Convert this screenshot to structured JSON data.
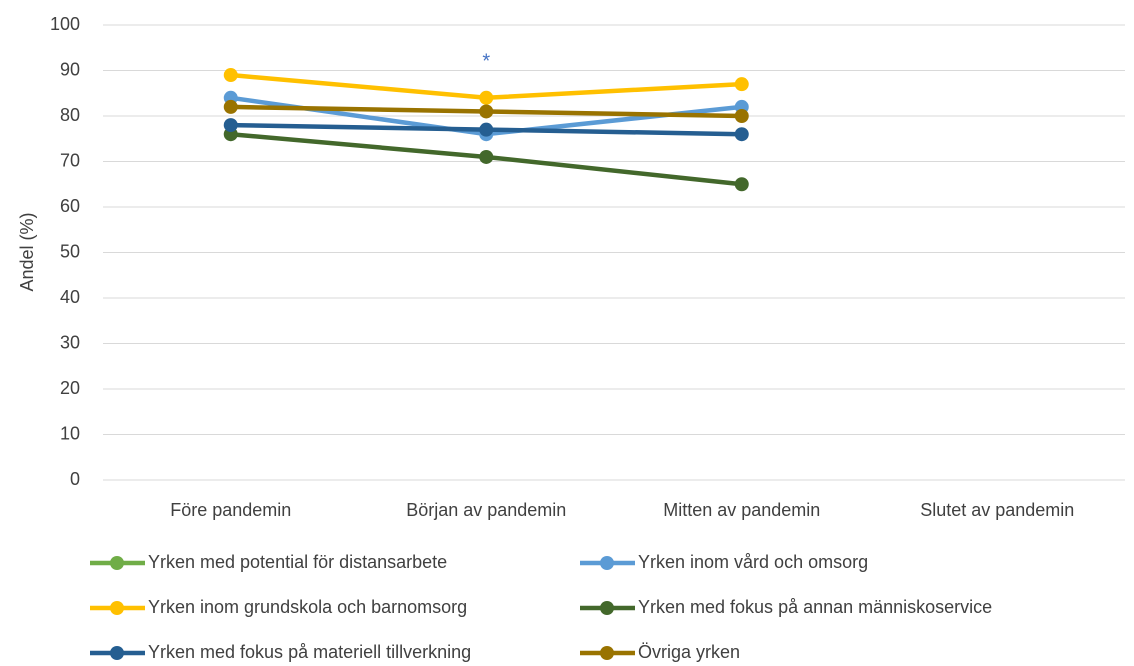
{
  "chart_data": {
    "type": "line",
    "y_label": "Andel (%)",
    "categories": [
      "Före pandemin",
      "Början av pandemin",
      "Mitten av pandemin",
      "Slutet av pandemin"
    ],
    "series": [
      {
        "name": "Yrken med potential för distansarbete",
        "color": "#70ad47",
        "values": [
          null,
          null,
          null,
          null
        ]
      },
      {
        "name": "Yrken inom vård och omsorg",
        "color": "#5b9bd5",
        "values": [
          84,
          76,
          82,
          null
        ]
      },
      {
        "name": "Yrken inom grundskola och barnomsorg",
        "color": "#ffc000",
        "values": [
          89,
          84,
          87,
          null
        ]
      },
      {
        "name": "Yrken med fokus på annan människoservice",
        "color": "#43682b",
        "values": [
          76,
          71,
          65,
          null
        ]
      },
      {
        "name": "Yrken med fokus på materiell tillverkning",
        "color": "#255e91",
        "values": [
          78,
          77,
          76,
          null
        ]
      },
      {
        "name": "Övriga yrken",
        "color": "#997300",
        "values": [
          82,
          81,
          80,
          null
        ]
      }
    ],
    "annotation": "*",
    "annotation_color": "#4472c4",
    "ylim": [
      0,
      100
    ],
    "yticks": [
      0,
      10,
      20,
      30,
      40,
      50,
      60,
      70,
      80,
      90,
      100
    ],
    "grid": true,
    "legend": "bottom"
  }
}
